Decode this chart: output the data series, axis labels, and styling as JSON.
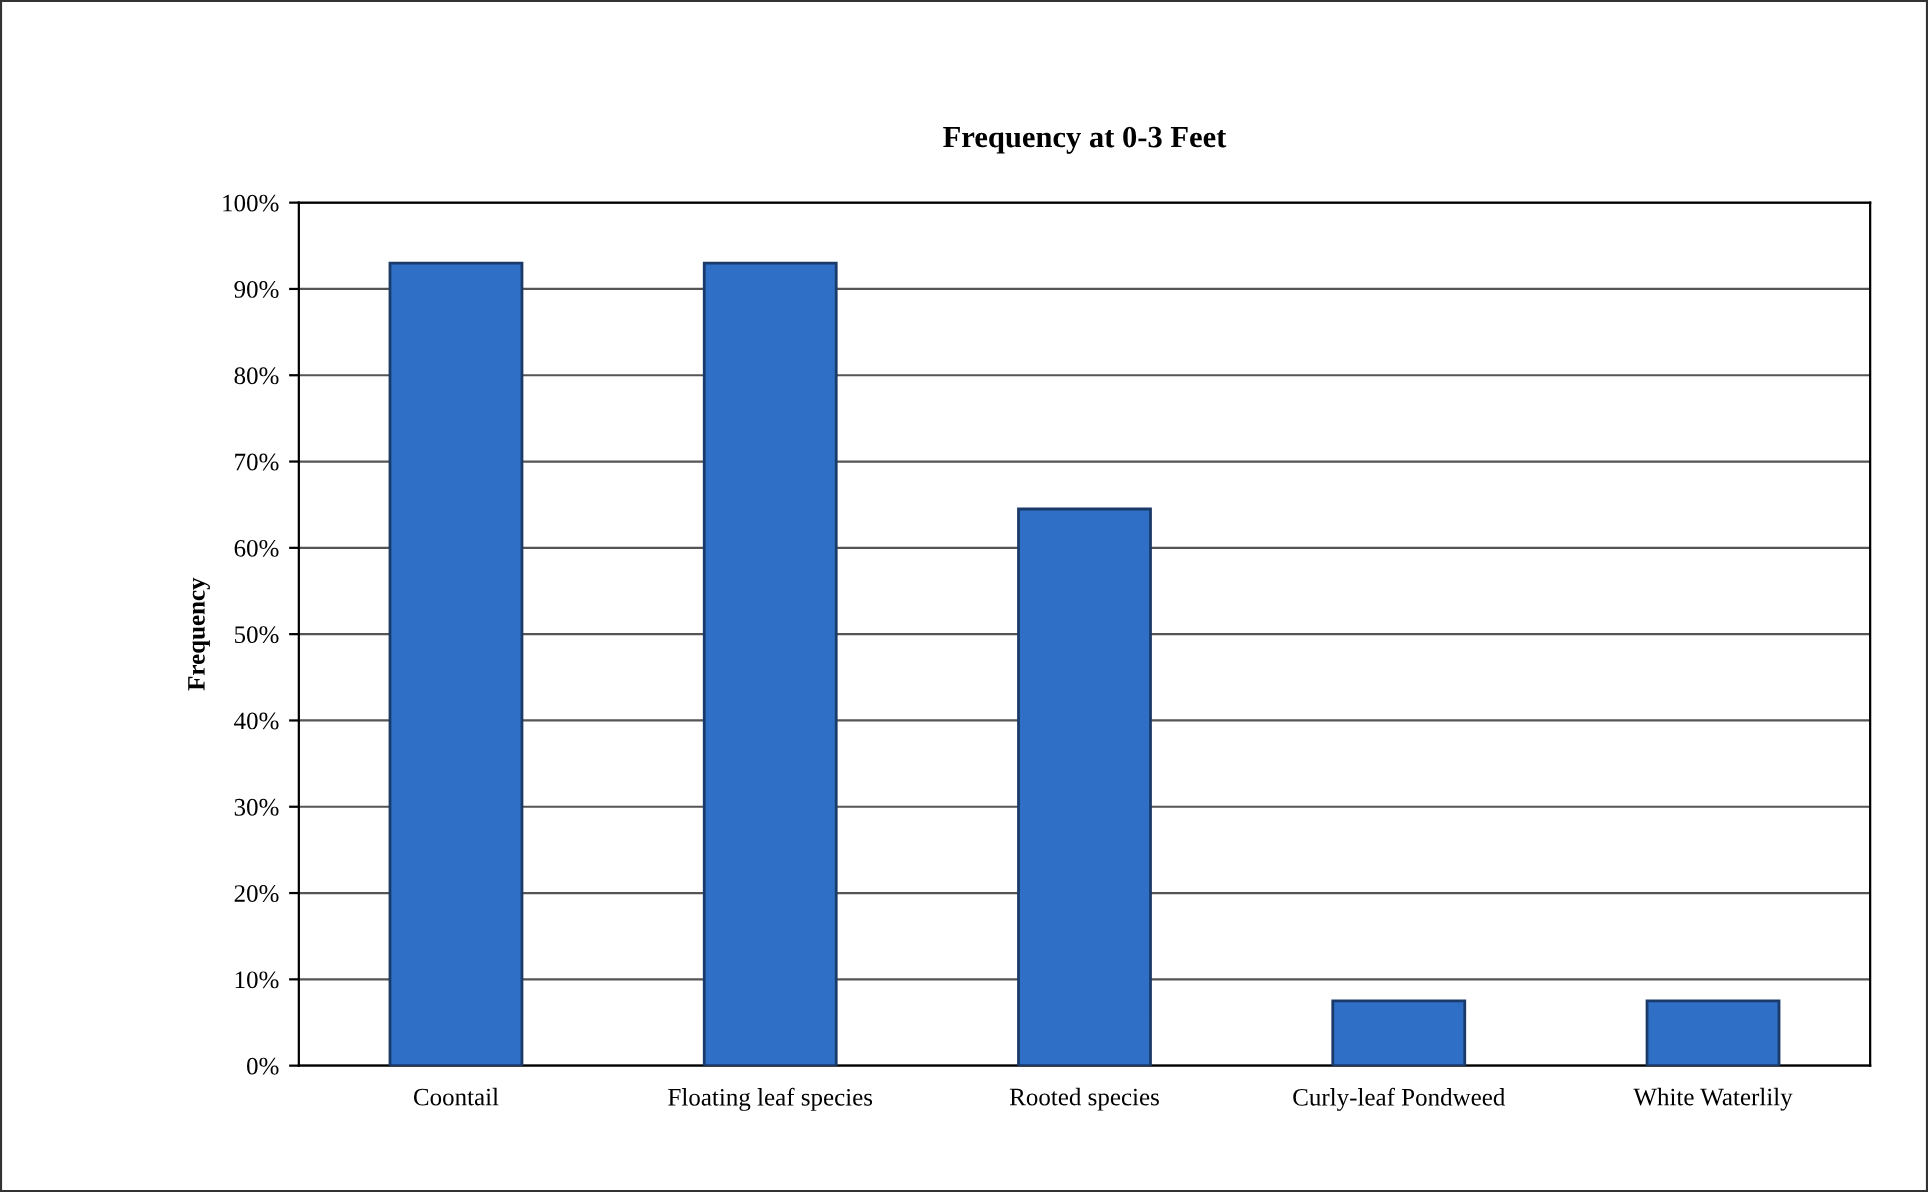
{
  "chart_data": {
    "type": "bar",
    "title": "Frequency at 0-3 Feet",
    "ylabel": "Frequency",
    "categories": [
      "Coontail",
      "Floating leaf species",
      "Rooted species",
      "Curly-leaf Pondweed",
      "White Waterlily"
    ],
    "values": [
      93,
      93,
      64.5,
      7.5,
      7.5
    ],
    "color": "#2f6fc6",
    "ylim": [
      0,
      100
    ],
    "yticks": [
      {
        "value": 0,
        "label": "0%"
      },
      {
        "value": 10,
        "label": "10%"
      },
      {
        "value": 20,
        "label": "20%"
      },
      {
        "value": 30,
        "label": "30%"
      },
      {
        "value": 40,
        "label": "40%"
      },
      {
        "value": 50,
        "label": "50%"
      },
      {
        "value": 60,
        "label": "60%"
      },
      {
        "value": 70,
        "label": "70%"
      },
      {
        "value": 80,
        "label": "80%"
      },
      {
        "value": 90,
        "label": "90%"
      },
      {
        "value": 100,
        "label": "100%"
      }
    ],
    "grid": "y",
    "legend": false
  }
}
